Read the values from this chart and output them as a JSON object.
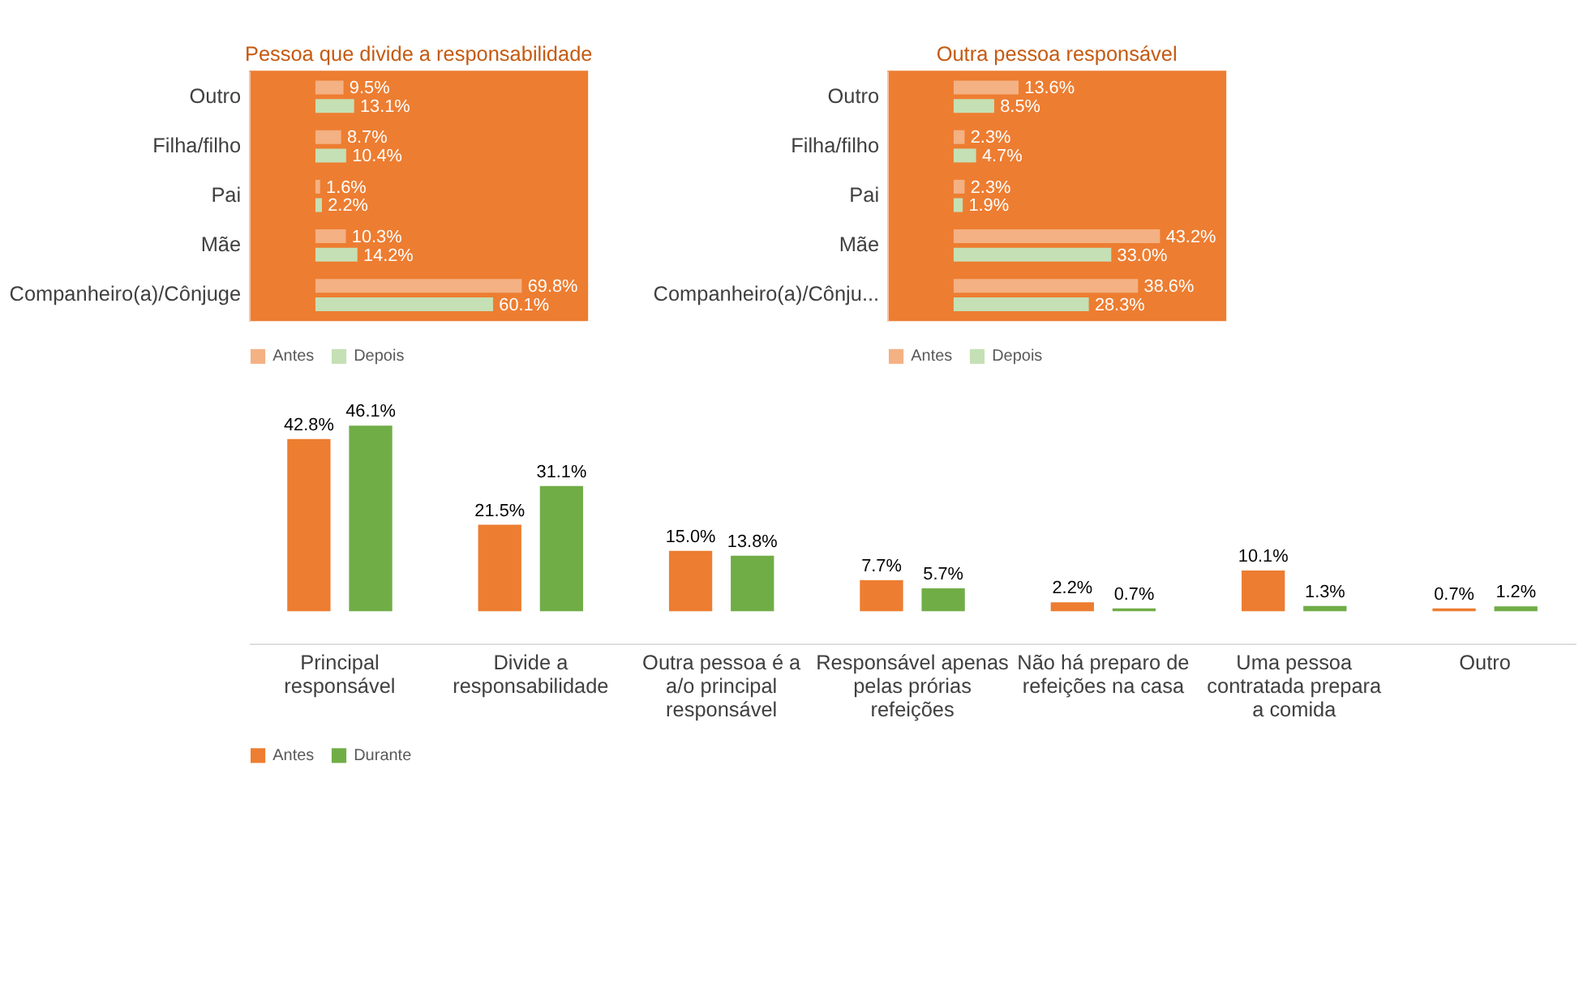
{
  "chart_data": [
    {
      "type": "bar",
      "orientation": "horizontal",
      "title": "Pessoa que divide a responsabilidade",
      "categories": [
        "Outro",
        "Filha/filho",
        "Pai",
        "Mãe",
        "Companheiro(a)/Cônjuge"
      ],
      "series": [
        {
          "name": "Antes",
          "color": "#f4b183",
          "values": [
            9.5,
            8.7,
            1.6,
            10.3,
            69.8
          ],
          "value_labels": [
            "9.5%",
            "8.7%",
            "1.6%",
            "10.3%",
            "69.8%"
          ]
        },
        {
          "name": "Depois",
          "color": "#c5e0b4",
          "values": [
            13.1,
            10.4,
            2.2,
            14.2,
            60.1
          ],
          "value_labels": [
            "13.1%",
            "10.4%",
            "2.2%",
            "14.2%",
            "60.1%"
          ]
        }
      ],
      "tick_labels": "y",
      "legend": "bottom"
    },
    {
      "type": "bar",
      "orientation": "horizontal",
      "title": "Outra pessoa responsável",
      "categories": [
        "Outro",
        "Filha/filho",
        "Pai",
        "Mãe",
        "Companheiro(a)/Cônju..."
      ],
      "series": [
        {
          "name": "Antes",
          "color": "#f4b183",
          "values": [
            13.6,
            2.3,
            2.3,
            43.2,
            38.6
          ],
          "value_labels": [
            "13.6%",
            "2.3%",
            "2.3%",
            "43.2%",
            "38.6%"
          ]
        },
        {
          "name": "Depois",
          "color": "#c5e0b4",
          "values": [
            8.5,
            4.7,
            1.9,
            33.0,
            28.3
          ],
          "value_labels": [
            "8.5%",
            "4.7%",
            "1.9%",
            "33.0%",
            "28.3%"
          ]
        }
      ],
      "tick_labels": "y",
      "legend": "bottom"
    },
    {
      "type": "bar",
      "categories": [
        "Principal responsável",
        "Divide a responsabilidade",
        "Outra pessoa é a a/o principal responsável",
        "Responsável apenas pelas prórias refeições",
        "Não há preparo de refeições na casa",
        "Uma pessoa contratada prepara a comida",
        "Outro"
      ],
      "series": [
        {
          "name": "Antes",
          "color": "#ed7d31",
          "values": [
            42.8,
            21.5,
            15.0,
            7.7,
            2.2,
            10.1,
            0.7
          ],
          "value_labels": [
            "42.8%",
            "21.5%",
            "15.0%",
            "7.7%",
            "2.2%",
            "10.1%",
            "0.7%"
          ]
        },
        {
          "name": "Durante",
          "color": "#70ad47",
          "values": [
            46.1,
            31.1,
            13.8,
            5.7,
            0.7,
            1.3,
            1.2
          ],
          "value_labels": [
            "46.1%",
            "31.1%",
            "13.8%",
            "5.7%",
            "0.7%",
            "1.3%",
            "1.2%"
          ]
        }
      ],
      "tick_labels": "x",
      "legend": "bottom"
    }
  ]
}
